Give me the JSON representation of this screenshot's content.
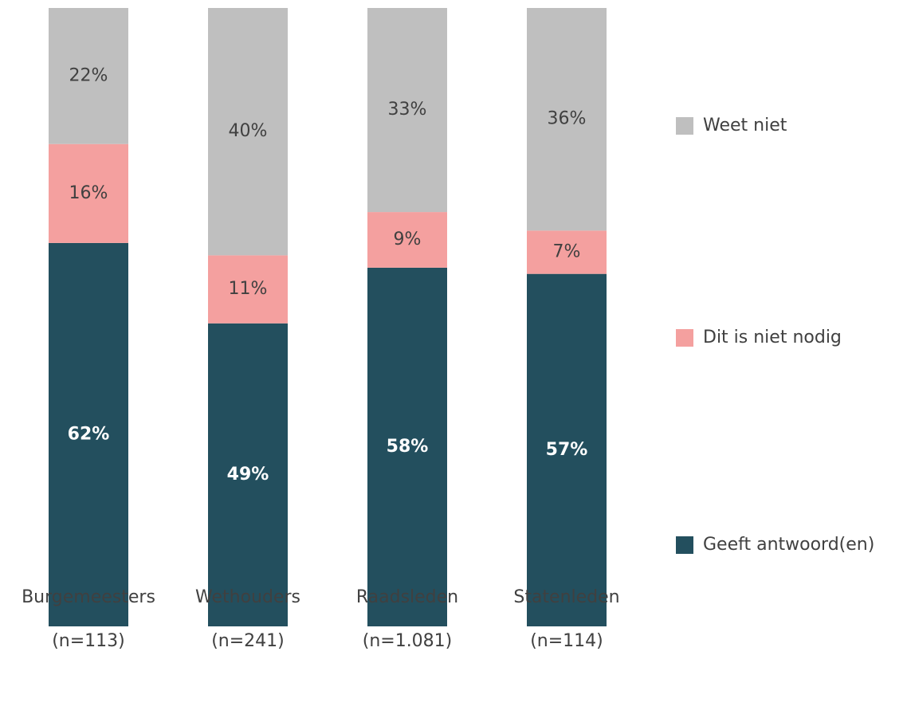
{
  "chart_data": {
    "type": "stacked_bar",
    "categories": [
      "Burgemeesters",
      "Wethouders",
      "Raadsleden",
      "Statenleden"
    ],
    "category_counts": [
      "(n=113)",
      "(n=241)",
      "(n=1.081)",
      "(n=114)"
    ],
    "ylim": [
      0,
      100
    ],
    "series": [
      {
        "name": "Geeft antwoord(en)",
        "color": "#234f5e",
        "values": [
          62,
          49,
          58,
          57
        ],
        "value_labels": [
          "62%",
          "49%",
          "58%",
          "57%"
        ]
      },
      {
        "name": "Dit is niet nodig",
        "color": "#f4a09f",
        "values": [
          16,
          11,
          9,
          7
        ],
        "value_labels": [
          "16%",
          "11%",
          "9%",
          "7%"
        ]
      },
      {
        "name": "Weet niet",
        "color": "#bfbfbf",
        "values": [
          22,
          40,
          33,
          36
        ],
        "value_labels": [
          "22%",
          "40%",
          "33%",
          "36%"
        ]
      }
    ]
  }
}
